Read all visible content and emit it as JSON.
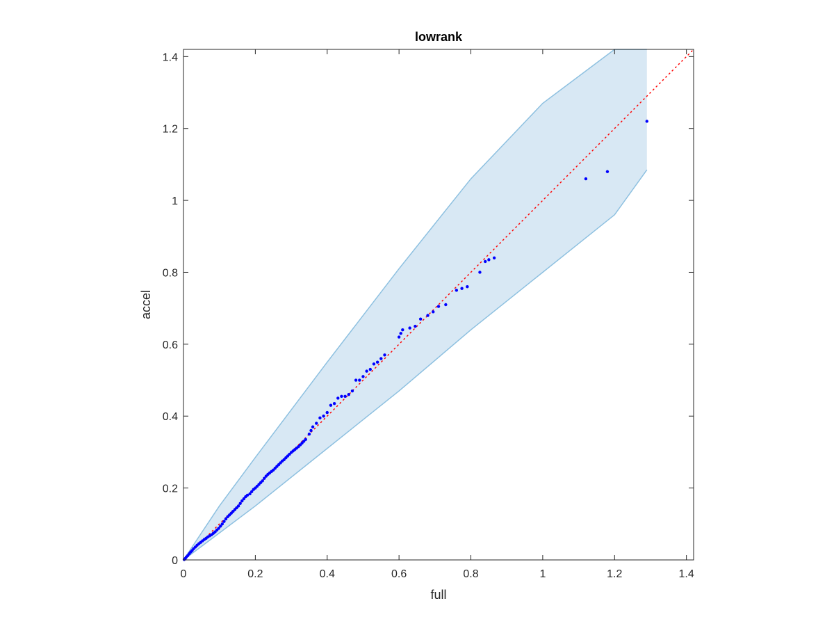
{
  "chart_data": {
    "type": "scatter",
    "title": "lowrank",
    "xlabel": "full",
    "ylabel": "accel",
    "xlim": [
      0,
      1.42
    ],
    "ylim": [
      0,
      1.42
    ],
    "xticks": [
      0,
      0.2,
      0.4,
      0.6,
      0.8,
      1,
      1.2,
      1.4
    ],
    "xtick_labels": [
      "0",
      "0.2",
      "0.4",
      "0.6",
      "0.8",
      "1",
      "1.2",
      "1.4"
    ],
    "yticks": [
      0,
      0.2,
      0.4,
      0.6,
      0.8,
      1,
      1.2,
      1.4
    ],
    "ytick_labels": [
      "0",
      "0.2",
      "0.4",
      "0.6",
      "0.8",
      "1",
      "1.2",
      "1.4"
    ],
    "grid": false,
    "colors": {
      "points": "#0000ff",
      "reference_line": "#ff0000",
      "band_fill": "#d8e8f4",
      "band_edge": "#8dc0e0",
      "axes": "#262626"
    },
    "reference_line": {
      "style": "dotted",
      "x": [
        0,
        1.42
      ],
      "y": [
        0,
        1.42
      ]
    },
    "band": {
      "x": [
        0,
        0.1,
        0.2,
        0.4,
        0.6,
        0.8,
        1.0,
        1.2,
        1.29
      ],
      "upper": [
        0,
        0.15,
        0.285,
        0.55,
        0.81,
        1.06,
        1.27,
        1.42,
        1.42
      ],
      "lower": [
        0,
        0.075,
        0.15,
        0.31,
        0.47,
        0.64,
        0.8,
        0.96,
        1.085
      ]
    },
    "points": {
      "x": [
        0.002,
        0.005,
        0.008,
        0.012,
        0.016,
        0.02,
        0.024,
        0.028,
        0.033,
        0.038,
        0.043,
        0.048,
        0.053,
        0.058,
        0.063,
        0.068,
        0.073,
        0.078,
        0.083,
        0.088,
        0.093,
        0.098,
        0.103,
        0.108,
        0.113,
        0.118,
        0.123,
        0.128,
        0.133,
        0.138,
        0.143,
        0.148,
        0.153,
        0.158,
        0.163,
        0.168,
        0.173,
        0.178,
        0.185,
        0.19,
        0.195,
        0.2,
        0.205,
        0.21,
        0.215,
        0.22,
        0.225,
        0.23,
        0.235,
        0.24,
        0.245,
        0.25,
        0.255,
        0.26,
        0.265,
        0.27,
        0.275,
        0.28,
        0.285,
        0.29,
        0.295,
        0.3,
        0.305,
        0.31,
        0.315,
        0.32,
        0.325,
        0.33,
        0.335,
        0.34,
        0.35,
        0.355,
        0.36,
        0.37,
        0.38,
        0.39,
        0.4,
        0.41,
        0.42,
        0.43,
        0.44,
        0.45,
        0.46,
        0.47,
        0.48,
        0.49,
        0.5,
        0.51,
        0.52,
        0.53,
        0.54,
        0.55,
        0.56,
        0.6,
        0.605,
        0.61,
        0.63,
        0.645,
        0.66,
        0.68,
        0.695,
        0.71,
        0.73,
        0.76,
        0.775,
        0.79,
        0.825,
        0.84,
        0.85,
        0.865,
        1.12,
        1.18,
        1.29
      ],
      "y": [
        0.001,
        0.004,
        0.008,
        0.012,
        0.017,
        0.022,
        0.026,
        0.031,
        0.036,
        0.041,
        0.045,
        0.049,
        0.053,
        0.057,
        0.06,
        0.064,
        0.067,
        0.07,
        0.074,
        0.078,
        0.083,
        0.088,
        0.094,
        0.1,
        0.107,
        0.114,
        0.12,
        0.125,
        0.13,
        0.135,
        0.14,
        0.145,
        0.15,
        0.157,
        0.164,
        0.17,
        0.176,
        0.18,
        0.184,
        0.19,
        0.196,
        0.2,
        0.205,
        0.21,
        0.215,
        0.22,
        0.227,
        0.233,
        0.238,
        0.242,
        0.246,
        0.25,
        0.255,
        0.26,
        0.265,
        0.27,
        0.275,
        0.279,
        0.284,
        0.289,
        0.294,
        0.299,
        0.303,
        0.307,
        0.311,
        0.315,
        0.32,
        0.325,
        0.33,
        0.335,
        0.35,
        0.36,
        0.37,
        0.38,
        0.395,
        0.4,
        0.41,
        0.43,
        0.435,
        0.45,
        0.455,
        0.455,
        0.46,
        0.47,
        0.5,
        0.5,
        0.51,
        0.525,
        0.53,
        0.545,
        0.55,
        0.56,
        0.57,
        0.62,
        0.63,
        0.64,
        0.645,
        0.65,
        0.67,
        0.68,
        0.69,
        0.705,
        0.71,
        0.75,
        0.755,
        0.76,
        0.8,
        0.83,
        0.835,
        0.84,
        1.06,
        1.08,
        1.22
      ]
    }
  }
}
